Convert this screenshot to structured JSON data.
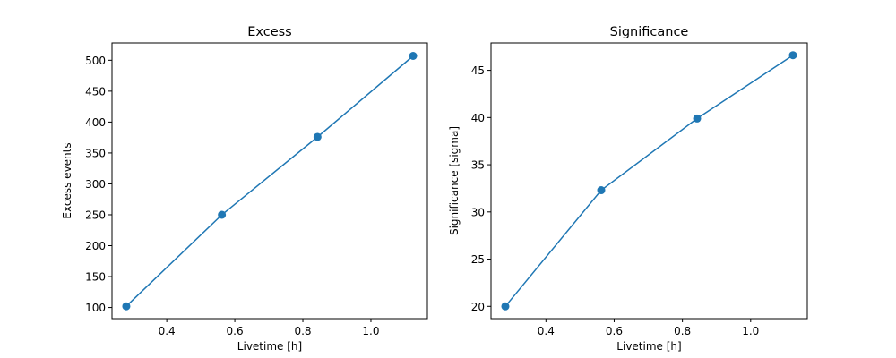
{
  "chart_data": [
    {
      "type": "line",
      "title": "Excess",
      "xlabel": "Livetime [h]",
      "ylabel": "Excess events",
      "x": [
        0.281,
        0.562,
        0.843,
        1.124
      ],
      "series": [
        {
          "name": "Excess",
          "values": [
            102,
            250,
            376,
            507
          ],
          "color": "#1f77b4",
          "marker": "circle"
        }
      ],
      "xticks": [
        "0.4",
        "0.6",
        "0.8",
        "1.0"
      ],
      "yticks": [
        "100",
        "150",
        "200",
        "250",
        "300",
        "350",
        "400",
        "450",
        "500"
      ],
      "xlim": [
        0.239,
        1.166
      ],
      "ylim": [
        82,
        528
      ],
      "grid": false,
      "legend": null
    },
    {
      "type": "line",
      "title": "Significance",
      "xlabel": "Livetime [h]",
      "ylabel": "Significance [sigma]",
      "x": [
        0.281,
        0.562,
        0.843,
        1.124
      ],
      "series": [
        {
          "name": "Significance",
          "values": [
            20.0,
            32.3,
            39.9,
            46.6
          ],
          "color": "#1f77b4",
          "marker": "circle"
        }
      ],
      "xticks": [
        "0.4",
        "0.6",
        "0.8",
        "1.0"
      ],
      "yticks": [
        "20",
        "25",
        "30",
        "35",
        "40",
        "45"
      ],
      "xlim": [
        0.239,
        1.166
      ],
      "ylim": [
        18.7,
        47.9
      ],
      "grid": false,
      "legend": null
    }
  ]
}
